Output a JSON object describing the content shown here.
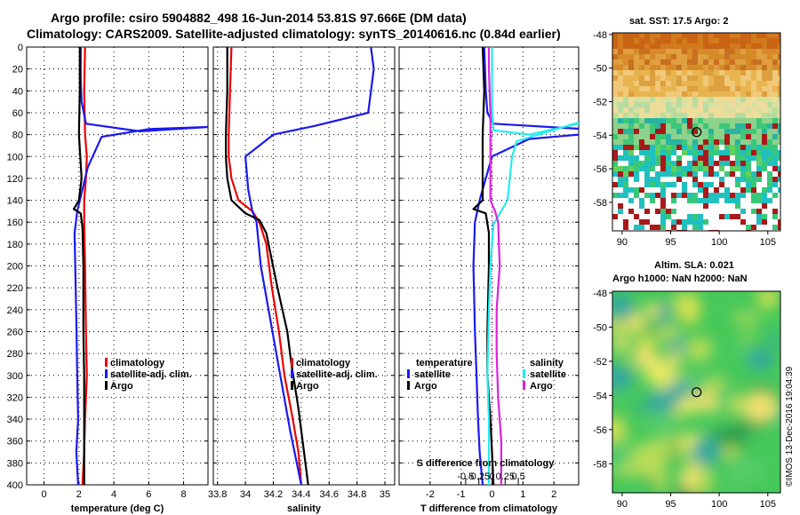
{
  "title": {
    "line1": "Argo profile: csiro 5904882_498 16-Jun-2014 53.81S 97.666E (DM data)",
    "line2": "Climatology: CARS2009. Satellite-adjusted climatology: synTS_20140616.nc (0.84d earlier)"
  },
  "depth_ticks": [
    "0",
    "20",
    "40",
    "60",
    "80",
    "100",
    "120",
    "140",
    "160",
    "180",
    "200",
    "220",
    "240",
    "260",
    "280",
    "300",
    "320",
    "340",
    "360",
    "380",
    "400"
  ],
  "colors": {
    "red": "#ee0000",
    "blue": "#1a1aee",
    "black": "#000000",
    "cyan": "#22eeee",
    "magenta": "#dd22dd"
  },
  "chart_data": [
    {
      "type": "line",
      "name": "temperature",
      "xlabel": "temperature (deg C)",
      "xlim": [
        -1,
        9.4
      ],
      "ylim": [
        400,
        0
      ],
      "xticks": [
        0,
        2,
        4,
        6,
        8
      ],
      "xtick_labels": [
        "0",
        "2",
        "4",
        "6",
        "8"
      ],
      "legend": [
        "climatology",
        "satellite-adj. clim.",
        "Argo"
      ],
      "series": [
        {
          "name": "climatology",
          "color": "red",
          "points": [
            [
              2.35,
              0
            ],
            [
              2.3,
              40
            ],
            [
              2.35,
              80
            ],
            [
              2.45,
              100
            ],
            [
              2.4,
              120
            ],
            [
              2.3,
              140
            ],
            [
              2.3,
              160
            ],
            [
              2.35,
              200
            ],
            [
              2.4,
              260
            ],
            [
              2.45,
              300
            ],
            [
              2.35,
              340
            ],
            [
              2.3,
              370
            ],
            [
              2.2,
              400
            ]
          ]
        },
        {
          "name": "satellite-adj. clim.",
          "color": "blue",
          "points": [
            [
              2.1,
              0
            ],
            [
              2.1,
              30
            ],
            [
              2.15,
              50
            ],
            [
              2.4,
              70
            ],
            [
              5.5,
              77
            ],
            [
              9.4,
              73
            ],
            [
              6.0,
              75
            ],
            [
              3.3,
              82
            ],
            [
              2.5,
              110
            ],
            [
              2.2,
              130
            ],
            [
              1.9,
              150
            ],
            [
              1.75,
              170
            ],
            [
              1.8,
              210
            ],
            [
              1.85,
              250
            ],
            [
              1.9,
              300
            ],
            [
              1.95,
              340
            ],
            [
              1.85,
              370
            ],
            [
              1.95,
              400
            ]
          ]
        },
        {
          "name": "Argo",
          "color": "black",
          "points": [
            [
              2.05,
              0
            ],
            [
              2.05,
              40
            ],
            [
              2.0,
              80
            ],
            [
              2.15,
              120
            ],
            [
              2.0,
              140
            ],
            [
              1.7,
              148
            ],
            [
              2.1,
              152
            ],
            [
              2.2,
              165
            ],
            [
              2.25,
              200
            ],
            [
              2.25,
              260
            ],
            [
              2.3,
              300
            ],
            [
              2.3,
              330
            ],
            [
              2.3,
              360
            ],
            [
              2.3,
              400
            ]
          ]
        }
      ]
    },
    {
      "type": "line",
      "name": "salinity",
      "xlabel": "salinity",
      "xlim": [
        33.77,
        35.07
      ],
      "ylim": [
        400,
        0
      ],
      "xticks": [
        33.8,
        34.0,
        34.2,
        34.4,
        34.6,
        34.8,
        35.0
      ],
      "xtick_labels": [
        "33.8",
        "34",
        "34.2",
        "34.4",
        "34.6",
        "34.8",
        "35"
      ],
      "legend": [
        "climatology",
        "satellite-adj. clim.",
        "Argo"
      ],
      "series": [
        {
          "name": "climatology",
          "color": "red",
          "points": [
            [
              33.9,
              0
            ],
            [
              33.89,
              40
            ],
            [
              33.88,
              80
            ],
            [
              33.88,
              100
            ],
            [
              33.9,
              120
            ],
            [
              33.95,
              140
            ],
            [
              34.05,
              150
            ],
            [
              34.1,
              160
            ],
            [
              34.15,
              180
            ],
            [
              34.19,
              220
            ],
            [
              34.24,
              260
            ],
            [
              34.28,
              300
            ],
            [
              34.34,
              340
            ],
            [
              34.38,
              370
            ],
            [
              34.4,
              400
            ]
          ]
        },
        {
          "name": "satellite-adj. clim.",
          "color": "blue",
          "points": [
            [
              34.9,
              0
            ],
            [
              34.92,
              20
            ],
            [
              34.88,
              60
            ],
            [
              34.5,
              72
            ],
            [
              34.2,
              80
            ],
            [
              34.0,
              100
            ],
            [
              34.02,
              130
            ],
            [
              34.05,
              150
            ],
            [
              34.08,
              160
            ],
            [
              34.11,
              200
            ],
            [
              34.18,
              250
            ],
            [
              34.25,
              300
            ],
            [
              34.32,
              350
            ],
            [
              34.4,
              400
            ]
          ]
        },
        {
          "name": "Argo",
          "color": "black",
          "points": [
            [
              33.87,
              0
            ],
            [
              33.87,
              40
            ],
            [
              33.86,
              80
            ],
            [
              33.86,
              100
            ],
            [
              33.87,
              120
            ],
            [
              33.9,
              140
            ],
            [
              34.0,
              152
            ],
            [
              34.1,
              158
            ],
            [
              34.15,
              170
            ],
            [
              34.23,
              220
            ],
            [
              34.3,
              260
            ],
            [
              34.33,
              290
            ],
            [
              34.38,
              330
            ],
            [
              34.42,
              370
            ],
            [
              34.45,
              400
            ]
          ]
        }
      ]
    },
    {
      "type": "line",
      "name": "difference",
      "xlabel": "T difference from climatology",
      "xlim": [
        -3,
        2.8
      ],
      "ylim": [
        400,
        0
      ],
      "xticks": [
        -2,
        -1,
        0,
        1,
        2
      ],
      "xtick_labels": [
        "-2",
        "-1",
        "0",
        "1",
        "2"
      ],
      "s_axis_label": "S difference  from climatology",
      "s_ticks": [
        -0.5,
        -0.25,
        0,
        0.25,
        0.5
      ],
      "s_tick_labels": [
        "-0.5",
        "-0.25",
        "0",
        "0.25",
        "0.5"
      ],
      "s_scale": 0.5,
      "legend_temperature": {
        "title": "temperature",
        "items": [
          "satellite",
          "Argo"
        ]
      },
      "legend_salinity": {
        "title": "salinity",
        "items": [
          "satellite",
          "Argo"
        ]
      },
      "series": [
        {
          "name": "temperature satellite",
          "color": "blue",
          "points": [
            [
              -0.25,
              0
            ],
            [
              -0.2,
              40
            ],
            [
              -0.15,
              60
            ],
            [
              0.05,
              70
            ],
            [
              3.0,
              75
            ],
            [
              2.8,
              80
            ],
            [
              1.2,
              84
            ],
            [
              0.0,
              100
            ],
            [
              -0.2,
              120
            ],
            [
              -0.4,
              140
            ],
            [
              -0.55,
              160
            ],
            [
              -0.6,
              200
            ],
            [
              -0.55,
              260
            ],
            [
              -0.5,
              300
            ],
            [
              -0.45,
              340
            ],
            [
              -0.4,
              370
            ],
            [
              -0.3,
              400
            ]
          ]
        },
        {
          "name": "temperature Argo",
          "color": "black",
          "points": [
            [
              -0.3,
              0
            ],
            [
              -0.25,
              40
            ],
            [
              -0.3,
              80
            ],
            [
              -0.3,
              120
            ],
            [
              -0.3,
              140
            ],
            [
              -0.6,
              148
            ],
            [
              -0.2,
              152
            ],
            [
              -0.1,
              170
            ],
            [
              -0.1,
              200
            ],
            [
              -0.15,
              260
            ],
            [
              -0.15,
              300
            ],
            [
              -0.05,
              340
            ],
            [
              0.0,
              370
            ],
            [
              0.05,
              400
            ]
          ]
        },
        {
          "name": "salinity satellite",
          "color": "cyan",
          "points": [
            [
              0.0,
              0
            ],
            [
              0.0,
              60
            ],
            [
              0.05,
              76
            ],
            [
              1.2,
              80
            ],
            [
              2.8,
              70
            ],
            [
              2.9,
              68
            ],
            [
              0.8,
              86
            ],
            [
              0.65,
              100
            ],
            [
              0.5,
              140
            ],
            [
              0.05,
              162
            ],
            [
              0.0,
              180
            ],
            [
              -0.05,
              200
            ],
            [
              -0.1,
              240
            ],
            [
              -0.15,
              300
            ],
            [
              -0.1,
              340
            ],
            [
              -0.1,
              400
            ]
          ]
        },
        {
          "name": "salinity Argo",
          "color": "magenta",
          "points": [
            [
              -0.1,
              0
            ],
            [
              -0.1,
              20
            ],
            [
              -0.05,
              60
            ],
            [
              -0.05,
              100
            ],
            [
              -0.05,
              140
            ],
            [
              0.1,
              150
            ],
            [
              0.2,
              160
            ],
            [
              0.25,
              200
            ],
            [
              0.15,
              240
            ],
            [
              0.15,
              280
            ],
            [
              0.2,
              320
            ],
            [
              0.3,
              360
            ],
            [
              0.3,
              400
            ]
          ]
        }
      ]
    }
  ],
  "maps": {
    "sst": {
      "title": "sat. SST: 17.5 Argo: 2",
      "yticks": [
        "-48",
        "-50",
        "-52",
        "-54",
        "-56",
        "-58"
      ],
      "xticks": [
        "90",
        "95",
        "100",
        "105"
      ]
    },
    "sla": {
      "title1": "Altim. SLA: 0.021",
      "title2": "Argo h1000: NaN h2000: NaN",
      "yticks": [
        "-48",
        "-50",
        "-52",
        "-54",
        "-56",
        "-58"
      ],
      "xticks": [
        "90",
        "95",
        "100",
        "105"
      ]
    }
  },
  "watermark": "©IMOS 13-Dec-2016 19:04:39"
}
